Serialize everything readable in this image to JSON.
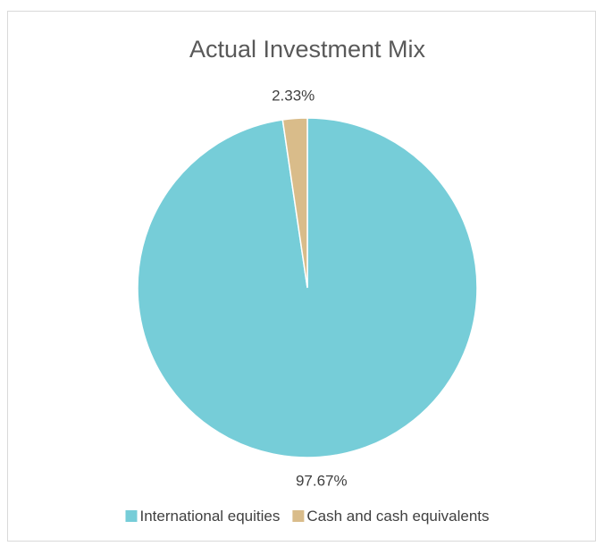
{
  "chart_data": {
    "type": "pie",
    "title": "Actual Investment Mix",
    "categories": [
      "International equities",
      "Cash and cash equivalents"
    ],
    "values": [
      97.67,
      2.33
    ],
    "data_labels": [
      "97.67%",
      "2.33%"
    ],
    "colors": [
      "#76CDD8",
      "#D9BC8A"
    ],
    "legend_position": "bottom"
  }
}
